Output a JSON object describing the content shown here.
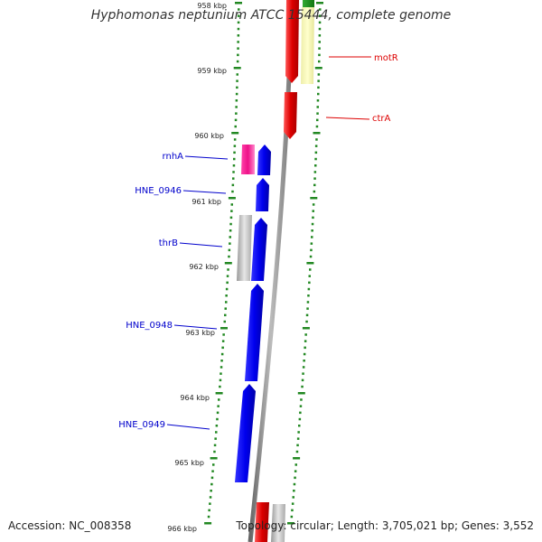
{
  "title": "Hyphomonas neptunium ATCC 15444, complete genome",
  "footer": {
    "accession": "Accession: NC_008358",
    "summary": "Topology: circular; Length: 3,705,021 bp; Genes: 3,552"
  },
  "ruler": [
    "958 kbp",
    "959 kbp",
    "960 kbp",
    "961 kbp",
    "962 kbp",
    "963 kbp",
    "964 kbp",
    "965 kbp",
    "966 kbp"
  ],
  "genes": [
    {
      "label": "motR",
      "strand": "reverse",
      "color": "#dd0000"
    },
    {
      "label": "ctrA",
      "strand": "reverse",
      "color": "#dd0000"
    },
    {
      "label": "rnhA",
      "strand": "forward",
      "color": "#0000cc"
    },
    {
      "label": "HNE_0946",
      "strand": "forward",
      "color": "#0000cc"
    },
    {
      "label": "thrB",
      "strand": "forward",
      "color": "#0000cc"
    },
    {
      "label": "HNE_0948",
      "strand": "forward",
      "color": "#0000cc"
    },
    {
      "label": "HNE_0949",
      "strand": "forward",
      "color": "#0000cc"
    }
  ],
  "colors": {
    "forward_cds": "#0000ee",
    "reverse_cds": "#dd0000",
    "rna_gene": "#ee1188",
    "other_feature": "#bbbbbb",
    "pseudo_feature": "#eeeeaa",
    "tick": "#228822",
    "backbone": "#888888"
  }
}
